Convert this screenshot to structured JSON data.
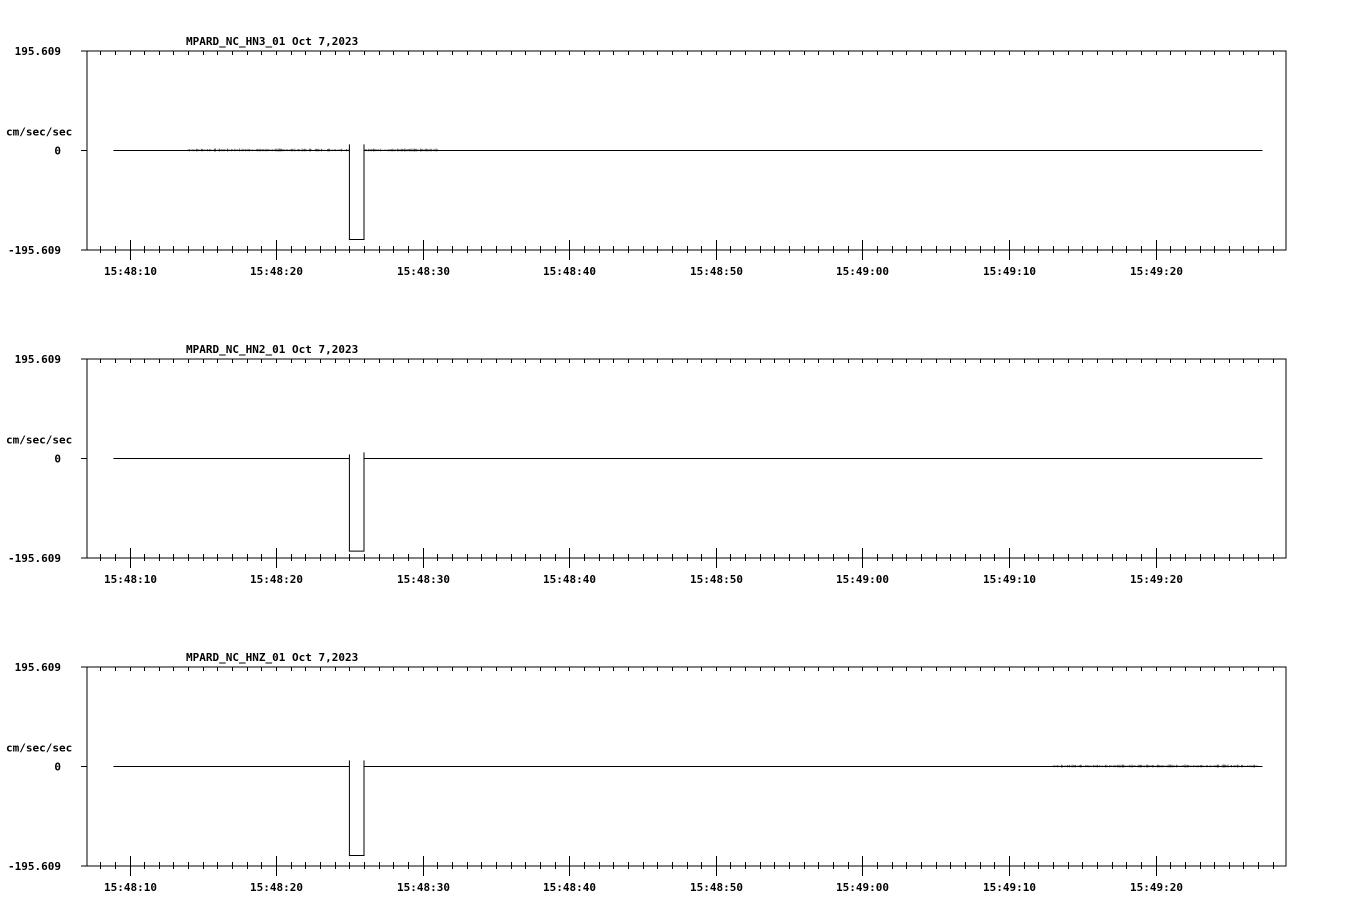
{
  "chart_data": [
    {
      "type": "line",
      "title": "MPARD_NC_HN3_01  Oct 7,2023",
      "ylabel": "cm/sec/sec",
      "ylim": [
        -195.609,
        195.609
      ],
      "ytick_labels": [
        "195.609",
        "0",
        "-195.609"
      ],
      "x_range_seconds": [
        "15:48:07.1",
        "15:49:28.9"
      ],
      "xtick_labels": [
        "15:48:10",
        "15:48:20",
        "15:48:30",
        "15:48:40",
        "15:48:50",
        "15:49:00",
        "15:49:10",
        "15:49:20"
      ],
      "signal": {
        "baseline": 0,
        "segments": [
          {
            "t": "15:48:08.9",
            "y": 0
          },
          {
            "t": "15:48:25.0",
            "y": 0
          },
          {
            "t": "15:48:25.0",
            "y": 12
          },
          {
            "t": "15:48:25.0",
            "y": -175
          },
          {
            "t": "15:48:26.0",
            "y": -175
          },
          {
            "t": "15:48:26.0",
            "y": 12
          },
          {
            "t": "15:48:26.0",
            "y": 0
          },
          {
            "t": "15:49:27.3",
            "y": 0
          }
        ],
        "noise_windows": [
          [
            "15:48:14",
            "15:48:25"
          ],
          [
            "15:48:26",
            "15:48:31"
          ]
        ]
      }
    },
    {
      "type": "line",
      "title": "MPARD_NC_HN2_01  Oct 7,2023",
      "ylabel": "cm/sec/sec",
      "ylim": [
        -195.609,
        195.609
      ],
      "ytick_labels": [
        "195.609",
        "0",
        "-195.609"
      ],
      "x_range_seconds": [
        "15:48:07.1",
        "15:49:28.9"
      ],
      "xtick_labels": [
        "15:48:10",
        "15:48:20",
        "15:48:30",
        "15:48:40",
        "15:48:50",
        "15:49:00",
        "15:49:10",
        "15:49:20"
      ],
      "signal": {
        "baseline": 0,
        "segments": [
          {
            "t": "15:48:08.9",
            "y": 0
          },
          {
            "t": "15:48:25.0",
            "y": 0
          },
          {
            "t": "15:48:25.0",
            "y": -100
          },
          {
            "t": "15:48:25.0",
            "y": 8
          },
          {
            "t": "15:48:25.0",
            "y": 0
          },
          {
            "t": "15:48:25.0",
            "y": -182
          },
          {
            "t": "15:48:26.0",
            "y": -182
          },
          {
            "t": "15:48:26.0",
            "y": 12
          },
          {
            "t": "15:48:26.0",
            "y": 0
          },
          {
            "t": "15:49:27.3",
            "y": 0
          }
        ],
        "noise_windows": []
      }
    },
    {
      "type": "line",
      "title": "MPARD_NC_HNZ_01  Oct 7,2023",
      "ylabel": "cm/sec/sec",
      "ylim": [
        -195.609,
        195.609
      ],
      "ytick_labels": [
        "195.609",
        "0",
        "-195.609"
      ],
      "x_range_seconds": [
        "15:48:07.1",
        "15:49:28.9"
      ],
      "xtick_labels": [
        "15:48:10",
        "15:48:20",
        "15:48:30",
        "15:48:40",
        "15:48:50",
        "15:49:00",
        "15:49:10",
        "15:49:20"
      ],
      "signal": {
        "baseline": 0,
        "segments": [
          {
            "t": "15:48:08.9",
            "y": 0
          },
          {
            "t": "15:48:25.0",
            "y": 0
          },
          {
            "t": "15:48:25.0",
            "y": 12
          },
          {
            "t": "15:48:25.0",
            "y": -175
          },
          {
            "t": "15:48:26.0",
            "y": -175
          },
          {
            "t": "15:48:26.0",
            "y": 12
          },
          {
            "t": "15:48:26.0",
            "y": 0
          },
          {
            "t": "15:49:27.3",
            "y": 0
          }
        ],
        "noise_windows": [
          [
            "15:49:13",
            "15:49:27"
          ]
        ]
      }
    }
  ]
}
